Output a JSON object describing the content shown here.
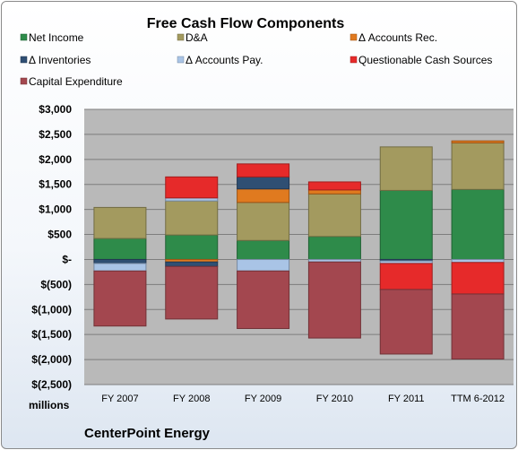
{
  "chart_data": {
    "type": "bar",
    "stacked": true,
    "title": "Free Cash Flow Components",
    "categories": [
      "FY 2007",
      "FY 2008",
      "FY 2009",
      "FY 2010",
      "FY 2011",
      "TTM 6-2012"
    ],
    "y_ticks": [
      "$3,000",
      "$2,500",
      "$2,000",
      "$1,500",
      "$1,000",
      "$500",
      "$-",
      "$(500)",
      "$(1,000)",
      "$(1,500)",
      "$(2,000)",
      "$(2,500)"
    ],
    "ylim": [
      -2500,
      3000
    ],
    "grid": true,
    "legend_position": "top",
    "unit_label": "millions",
    "footer": "CenterPoint Energy",
    "series": [
      {
        "name": "Net Income",
        "color": "#2e8b4a",
        "values": [
          420,
          490,
          380,
          460,
          1380,
          1400
        ]
      },
      {
        "name": "D&A",
        "color": "#a39a5f",
        "values": [
          620,
          680,
          760,
          850,
          870,
          930
        ]
      },
      {
        "name": "Δ Accounts Rec.",
        "color": "#e07a1f",
        "values": [
          0,
          -50,
          270,
          80,
          0,
          40
        ]
      },
      {
        "name": "Δ Inventories",
        "color": "#2f4f73",
        "values": [
          -80,
          -90,
          240,
          0,
          -30,
          0
        ]
      },
      {
        "name": "Δ Accounts Pay.",
        "color": "#a9c4e6",
        "values": [
          -150,
          60,
          -230,
          -50,
          -50,
          -60
        ]
      },
      {
        "name": "Questionable Cash Sources",
        "color": "#e62a2a",
        "values": [
          0,
          420,
          260,
          160,
          -520,
          -630
        ]
      },
      {
        "name": "Capital Expenditure",
        "color": "#a3474f",
        "values": [
          -1100,
          -1050,
          -1150,
          -1520,
          -1290,
          -1300
        ]
      }
    ]
  }
}
